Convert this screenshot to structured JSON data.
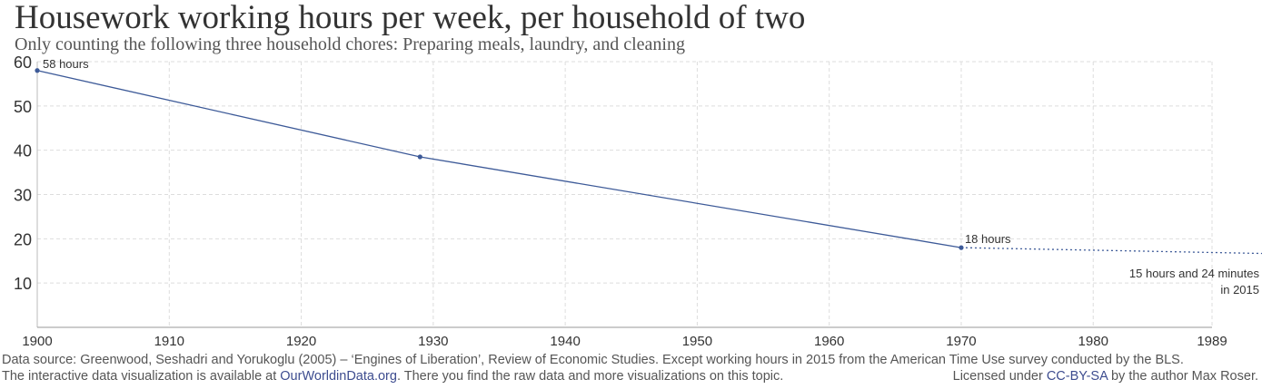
{
  "chart_data": {
    "type": "line",
    "title": "Housework working hours per week, per household of two",
    "subtitle": "Only counting the following three household chores: Preparing meals, laundry, and cleaning",
    "xlabel": "",
    "ylabel": "",
    "xlim": [
      1900,
      1989
    ],
    "ylim": [
      0,
      60
    ],
    "x_ticks": [
      "1900",
      "1910",
      "1920",
      "1930",
      "1940",
      "1950",
      "1960",
      "1970",
      "1980",
      "1989"
    ],
    "y_ticks": [
      "10",
      "20",
      "30",
      "40",
      "50",
      "60"
    ],
    "grid": true,
    "series": [
      {
        "name": "",
        "color": "#3d5a98",
        "points": [
          {
            "x": 1900,
            "y": 58
          },
          {
            "x": 1929,
            "y": 38.5
          },
          {
            "x": 1970,
            "y": 18
          }
        ]
      }
    ],
    "projection": {
      "style": "dotted",
      "from": {
        "x": 1970,
        "y": 18
      },
      "to": {
        "x": 2015,
        "y": 15.4
      }
    },
    "annotations": [
      {
        "text": "58 hours",
        "x": 1900,
        "y": 58
      },
      {
        "text": "18 hours",
        "x": 1970,
        "y": 18
      },
      {
        "text": "15 hours and 24 minutes",
        "x": 2015,
        "y": 15.4
      },
      {
        "text": "in 2015",
        "x": 2015,
        "y": 15.4
      }
    ]
  },
  "footer": {
    "source": "Data source: Greenwood, Seshadri and Yorukoglu (2005) – ‘Engines of Liberation’, Review of Economic Studies. Except working hours in 2015 from the American Time Use survey conducted by the BLS.",
    "interactive_prefix": "The interactive data visualization is available at ",
    "interactive_link": "OurWorldinData.org",
    "interactive_suffix": ". There you find the raw data and more visualizations on this topic.",
    "license_prefix": "Licensed under ",
    "license_link": "CC-BY-SA",
    "license_suffix": " by the author Max Roser."
  }
}
